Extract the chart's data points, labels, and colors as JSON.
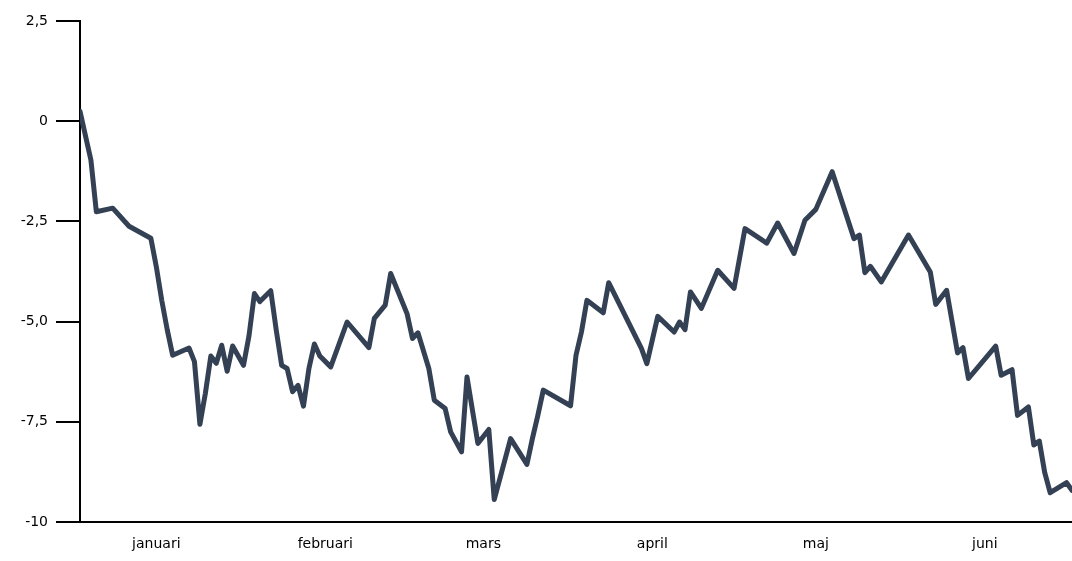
{
  "chart_data": {
    "type": "line",
    "marker": "none",
    "line_style": "solid",
    "x": [
      "--01-01",
      "--01-03",
      "--01-04",
      "--01-07",
      "--01-10",
      "--01-14",
      "--01-15",
      "--01-16",
      "--01-17",
      "--01-18",
      "--01-21",
      "--01-22",
      "--01-23",
      "--01-24",
      "--01-25",
      "--01-26",
      "--01-27",
      "--01-28",
      "--01-29",
      "--01-31",
      "--02-01",
      "--02-02",
      "--02-03",
      "--02-05",
      "--02-06",
      "--02-07",
      "--02-08",
      "--02-09",
      "--02-10",
      "--02-11",
      "--02-12",
      "--02-13",
      "--02-14",
      "--02-16",
      "--02-19",
      "--02-23",
      "--02-24",
      "--02-26",
      "--02-27",
      "--03-01",
      "--03-02",
      "--03-03",
      "--03-05",
      "--03-06",
      "--03-08",
      "--03-09",
      "--03-11",
      "--03-12",
      "--03-14",
      "--03-16",
      "--03-17",
      "--03-20",
      "--03-23",
      "--03-24",
      "--03-25",
      "--03-26",
      "--03-31",
      "--04-01",
      "--04-02",
      "--04-03",
      "--04-06",
      "--04-07",
      "--04-13",
      "--04-14",
      "--04-16",
      "--04-19",
      "--04-20",
      "--04-21",
      "--04-22",
      "--04-24",
      "--04-27",
      "--04-30",
      "--05-02",
      "--05-06",
      "--05-08",
      "--05-11",
      "--05-13",
      "--05-15",
      "--05-18",
      "--05-22",
      "--05-23",
      "--05-24",
      "--05-25",
      "--05-27",
      "--06-01",
      "--06-05",
      "--06-06",
      "--06-08",
      "--06-10",
      "--06-11",
      "--06-12",
      "--06-17",
      "--06-18",
      "--06-20",
      "--06-21",
      "--06-23",
      "--06-24",
      "--06-25",
      "--06-26",
      "--06-27",
      "--06-30",
      "--07-01"
    ],
    "series": [
      {
        "color": "#344154",
        "values": [
          0.25,
          -0.97,
          -2.26,
          -2.17,
          -2.62,
          -2.92,
          -3.63,
          -4.47,
          -5.2,
          -5.84,
          -5.66,
          -6.0,
          -7.56,
          -6.79,
          -5.86,
          -6.04,
          -5.59,
          -6.24,
          -5.61,
          -6.09,
          -5.36,
          -4.3,
          -4.5,
          -4.23,
          -5.21,
          -6.09,
          -6.17,
          -6.75,
          -6.59,
          -7.11,
          -6.17,
          -5.56,
          -5.86,
          -6.13,
          -5.01,
          -5.65,
          -4.92,
          -4.59,
          -3.8,
          -4.8,
          -5.42,
          -5.28,
          -6.17,
          -6.96,
          -7.17,
          -7.75,
          -8.25,
          -6.38,
          -8.04,
          -7.69,
          -9.44,
          -7.92,
          -8.56,
          -7.92,
          -7.34,
          -6.71,
          -7.1,
          -5.84,
          -5.26,
          -4.47,
          -4.78,
          -4.03,
          -5.67,
          -6.05,
          -4.87,
          -5.26,
          -5.01,
          -5.2,
          -4.26,
          -4.67,
          -3.72,
          -4.17,
          -2.68,
          -3.04,
          -2.54,
          -3.3,
          -2.47,
          -2.2,
          -1.26,
          -2.93,
          -2.84,
          -3.78,
          -3.62,
          -4.01,
          -2.84,
          -3.76,
          -4.57,
          -4.22,
          -5.78,
          -5.65,
          -6.42,
          -5.61,
          -6.34,
          -6.2,
          -7.34,
          -7.13,
          -8.08,
          -7.98,
          -8.77,
          -9.27,
          -9.02,
          -9.21
        ]
      }
    ],
    "xlim": [
      "--01-01",
      "--07-01"
    ],
    "xticks": [
      {
        "value": "--01-15",
        "label": "januari"
      },
      {
        "value": "--02-15",
        "label": "februari"
      },
      {
        "value": "--03-15",
        "label": "mars"
      },
      {
        "value": "--04-15",
        "label": "april"
      },
      {
        "value": "--05-15",
        "label": "maj"
      },
      {
        "value": "--06-15",
        "label": "juni"
      }
    ],
    "ylim": [
      -10,
      2.5
    ],
    "yticks": [
      {
        "value": 2.5,
        "label": "2,5"
      },
      {
        "value": 0,
        "label": "0"
      },
      {
        "value": -2.5,
        "label": "-2,5"
      },
      {
        "value": -5,
        "label": "-5,0"
      },
      {
        "value": -7.5,
        "label": "-7,5"
      },
      {
        "value": -10,
        "label": "-10"
      }
    ]
  }
}
